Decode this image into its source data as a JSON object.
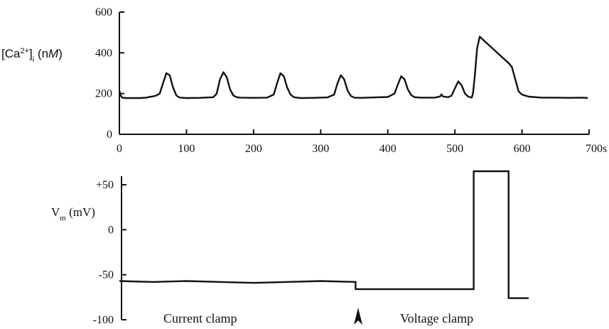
{
  "chart_data": [
    {
      "type": "line",
      "title": "",
      "ylabel": {
        "prefix": "[Ca",
        "sup": "2+",
        "bracket": "]",
        "sub": "i",
        "unit_open": " (n",
        "unit_italic": "M",
        "unit_close": ")"
      },
      "xlabel": "",
      "xlim": [
        0,
        700
      ],
      "ylim": [
        0,
        600
      ],
      "x_ticks": [
        0,
        100,
        200,
        300,
        400,
        500,
        600,
        700
      ],
      "x_tick_labels": [
        "0",
        "100",
        "200",
        "300",
        "400",
        "500",
        "600",
        "700s"
      ],
      "y_ticks": [
        0,
        200,
        400,
        600
      ],
      "y_tick_labels": [
        "0",
        "200",
        "400",
        "600"
      ],
      "grid": false,
      "legend": "none",
      "color": "#111111",
      "series": [
        {
          "x": [
            0,
            2,
            4,
            10,
            30,
            40,
            45,
            50,
            55,
            60,
            65,
            70,
            75,
            80,
            85,
            90,
            100,
            120,
            140,
            145,
            150,
            155,
            160,
            165,
            170,
            175,
            180,
            200,
            220,
            230,
            235,
            240,
            245,
            250,
            255,
            260,
            270,
            290,
            310,
            320,
            325,
            330,
            335,
            340,
            345,
            350,
            360,
            380,
            400,
            410,
            415,
            420,
            425,
            430,
            435,
            440,
            450,
            470,
            478,
            480,
            482,
            490,
            495,
            500,
            505,
            510,
            515,
            520,
            525,
            527,
            530,
            533,
            537,
            540,
            545,
            550,
            560,
            570,
            580,
            585,
            590,
            595,
            600,
            610,
            630,
            650,
            670,
            690,
            698
          ],
          "values": [
            215,
            190,
            180,
            178,
            178,
            180,
            184,
            186,
            190,
            200,
            250,
            300,
            290,
            230,
            190,
            180,
            178,
            179,
            182,
            200,
            270,
            305,
            280,
            220,
            190,
            182,
            180,
            179,
            180,
            195,
            250,
            300,
            285,
            230,
            195,
            182,
            178,
            179,
            181,
            195,
            250,
            290,
            270,
            215,
            188,
            180,
            179,
            181,
            183,
            200,
            245,
            285,
            270,
            220,
            192,
            182,
            180,
            180,
            186,
            196,
            186,
            182,
            190,
            225,
            260,
            240,
            200,
            185,
            180,
            200,
            300,
            420,
            480,
            470,
            455,
            440,
            410,
            380,
            350,
            330,
            270,
            210,
            195,
            185,
            180,
            180,
            179,
            180,
            178
          ]
        }
      ]
    },
    {
      "type": "line",
      "title": "",
      "ylabel": {
        "prefix": "V",
        "sub": "m",
        "unit": " (mV)"
      },
      "xlabel": "",
      "ylim": [
        -100,
        60
      ],
      "y_ticks": [
        50,
        0,
        -50,
        -100
      ],
      "y_tick_labels": [
        "+50",
        "0",
        "-50",
        "-100"
      ],
      "grid": false,
      "legend": "none",
      "color": "#111111",
      "annotations": [
        "Current clamp",
        "Voltage clamp"
      ],
      "marker_at": 352,
      "series": [
        {
          "x": [
            0,
            50,
            100,
            150,
            200,
            250,
            300,
            352,
            352,
            395,
            420,
            470,
            520,
            528,
            528,
            580,
            580,
            610
          ],
          "values": [
            -57,
            -58,
            -57,
            -58,
            -59,
            -58,
            -57,
            -58,
            -66,
            -66,
            -66,
            -66,
            -66,
            -66,
            65,
            65,
            -76,
            -76
          ]
        }
      ]
    }
  ]
}
